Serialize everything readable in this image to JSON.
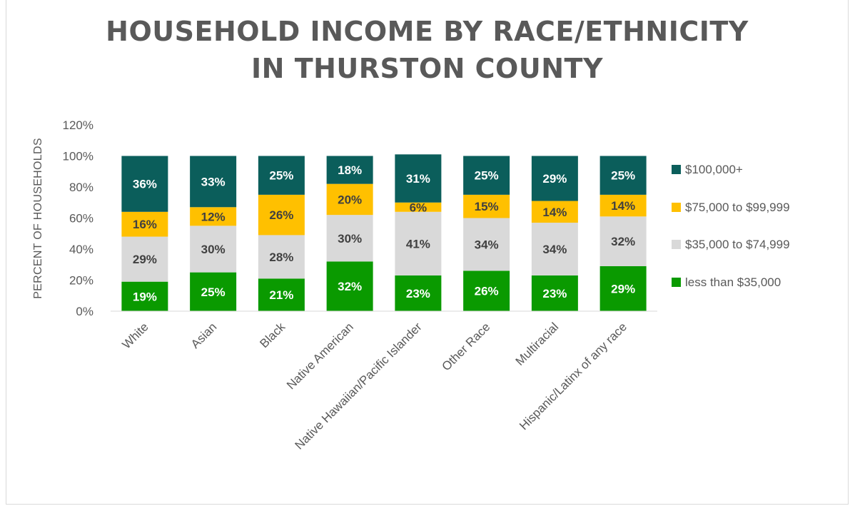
{
  "chart_data": {
    "type": "bar",
    "stacked": true,
    "title_lines": [
      "HOUSEHOLD INCOME BY RACE/ETHNICITY",
      "IN THURSTON COUNTY"
    ],
    "ylabel": "PERCENT OF HOUSEHOLDS",
    "ylim": [
      0,
      120
    ],
    "yticks": [
      0,
      20,
      40,
      60,
      80,
      100,
      120
    ],
    "ytick_labels": [
      "0%",
      "20%",
      "40%",
      "60%",
      "80%",
      "100%",
      "120%"
    ],
    "grid": false,
    "legend_position": "right",
    "categories": [
      "White",
      "Asian",
      "Black",
      "Native American",
      "Native Hawaiian/Pacific Islander",
      "Other Race",
      "Multiracial",
      "Hispanic/Latinx of any race"
    ],
    "series": [
      {
        "name": "less than $35,000",
        "color": "#0a9a00",
        "label_color": "#ffffff",
        "values": [
          19,
          25,
          21,
          32,
          23,
          26,
          23,
          29
        ],
        "labels": [
          "19%",
          "25%",
          "21%",
          "32%",
          "23%",
          "26%",
          "23%",
          "29%"
        ]
      },
      {
        "name": "$35,000 to $74,999",
        "color": "#d9d9d9",
        "label_color": "#404040",
        "values": [
          29,
          30,
          28,
          30,
          41,
          34,
          34,
          32
        ],
        "labels": [
          "29%",
          "30%",
          "28%",
          "30%",
          "41%",
          "34%",
          "34%",
          "32%"
        ]
      },
      {
        "name": "$75,000 to $99,999",
        "color": "#ffc000",
        "label_color": "#404040",
        "values": [
          16,
          12,
          26,
          20,
          6,
          15,
          14,
          14
        ],
        "labels": [
          "16%",
          "12%",
          "26%",
          "20%",
          "6%",
          "15%",
          "14%",
          "14%"
        ]
      },
      {
        "name": "$100,000+",
        "color": "#0b5e5b",
        "label_color": "#ffffff",
        "values": [
          36,
          33,
          25,
          18,
          31,
          25,
          29,
          25
        ],
        "labels": [
          "36%",
          "33%",
          "25%",
          "18%",
          "31%",
          "25%",
          "29%",
          "25%"
        ]
      }
    ],
    "legend_order": [
      3,
      2,
      1,
      0
    ]
  }
}
